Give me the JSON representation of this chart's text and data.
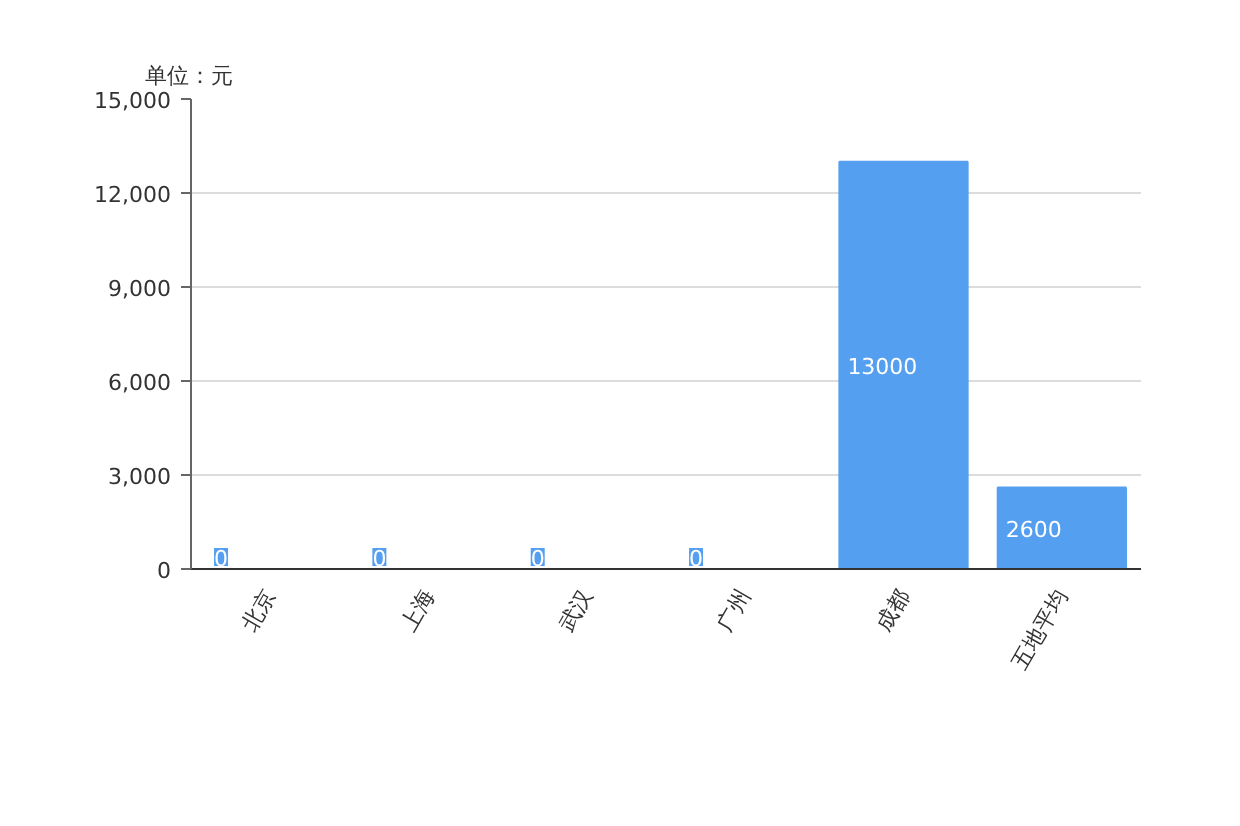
{
  "chart_data": {
    "type": "bar",
    "ylabel": "单位：元",
    "categories": [
      "北京",
      "上海",
      "武汉",
      "广州",
      "成都",
      "五地平均"
    ],
    "series": [
      {
        "color": "#559ff0",
        "values": [
          0,
          0,
          0,
          0,
          13000,
          2600
        ]
      }
    ],
    "ylim": [
      0,
      15000
    ],
    "yticks": [
      0,
      {
        "value": 3000,
        "label": "3,000"
      },
      {
        "value": 6000,
        "label": "6,000"
      },
      {
        "value": 9000,
        "label": "9,000"
      },
      {
        "value": 12000,
        "label": "12,000"
      },
      {
        "value": 15000,
        "label": "15,000"
      }
    ],
    "grid": "y",
    "data_labels": true
  }
}
